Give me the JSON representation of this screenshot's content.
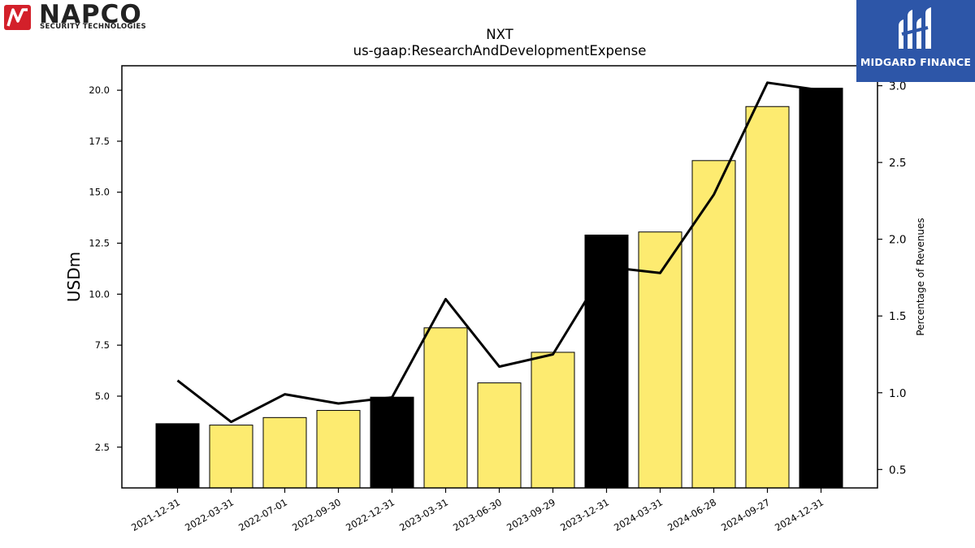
{
  "logos": {
    "left": {
      "name": "NAPCO",
      "subtitle": "SECURITY TECHNOLOGIES",
      "accent": "#d3202a"
    },
    "right": {
      "name": "MIDGARD FINANCE",
      "background": "#2d56a8"
    }
  },
  "chart_data": {
    "type": "bar",
    "title": "NXT",
    "subtitle": "us-gaap:ResearchAndDevelopmentExpense",
    "ylabel": "USDm",
    "y2label": "Percentage of Revenues",
    "categories": [
      "2021-12-31",
      "2022-03-31",
      "2022-07-01",
      "2022-09-30",
      "2022-12-31",
      "2023-03-31",
      "2023-06-30",
      "2023-09-29",
      "2023-12-31",
      "2024-03-31",
      "2024-06-28",
      "2024-09-27",
      "2024-12-31"
    ],
    "series": [
      {
        "type": "bar",
        "values": [
          3.65,
          3.58,
          3.95,
          4.3,
          4.95,
          8.35,
          5.65,
          7.15,
          12.9,
          13.05,
          16.55,
          19.2,
          20.1
        ],
        "colors": [
          "#000000",
          "#fdeb70",
          "#fdeb70",
          "#fdeb70",
          "#000000",
          "#fdeb70",
          "#fdeb70",
          "#fdeb70",
          "#000000",
          "#fdeb70",
          "#fdeb70",
          "#fdeb70",
          "#000000"
        ]
      },
      {
        "type": "line",
        "axis": "right",
        "values": [
          1.08,
          0.81,
          0.99,
          0.93,
          0.97,
          1.61,
          1.17,
          1.25,
          1.82,
          1.78,
          2.29,
          3.02,
          2.97
        ],
        "color": "#000000"
      }
    ],
    "ylim": [
      0.5,
      21.2
    ],
    "y2lim": [
      0.38,
      3.13
    ],
    "yticks": [
      "2.5",
      "5.0",
      "7.5",
      "10.0",
      "12.5",
      "15.0",
      "17.5",
      "20.0"
    ],
    "y2ticks": [
      "0.5",
      "1.0",
      "1.5",
      "2.0",
      "2.5",
      "3.0"
    ],
    "grid": false,
    "legend": "none"
  }
}
